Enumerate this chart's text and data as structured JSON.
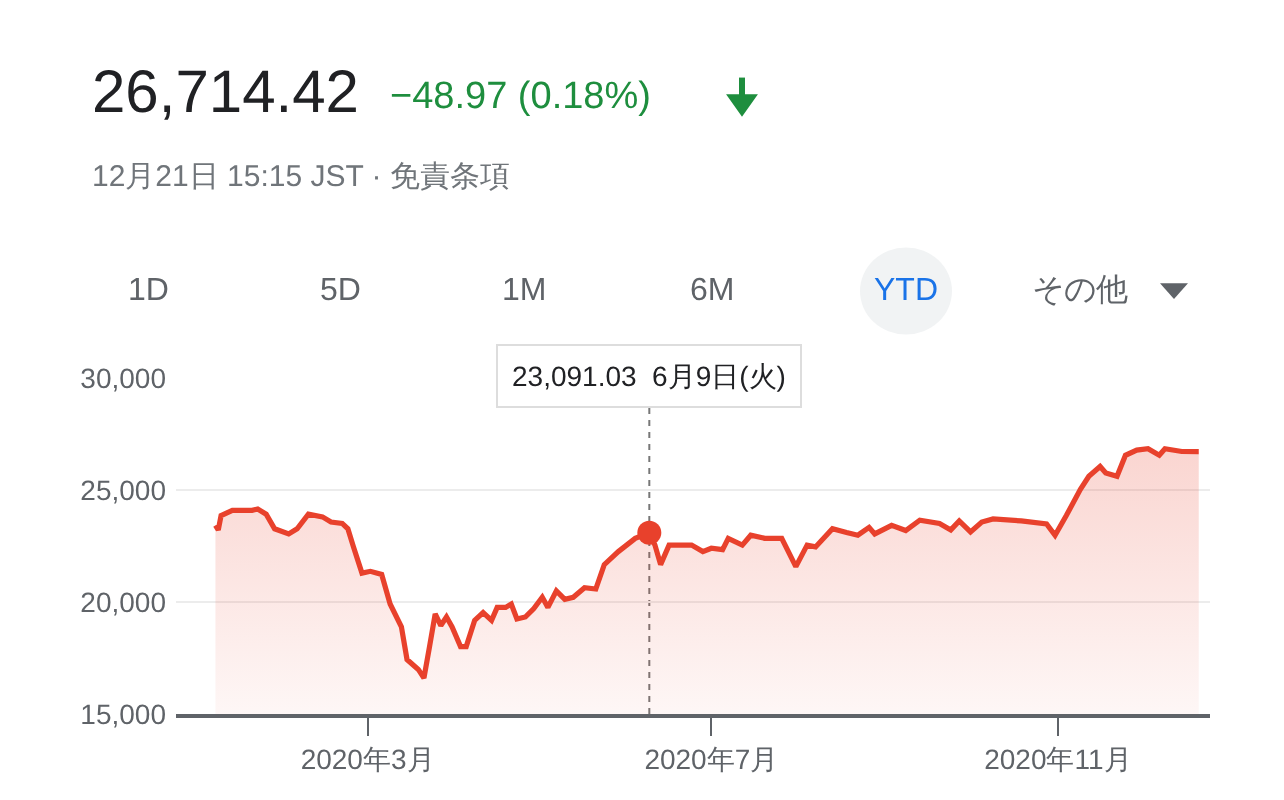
{
  "chart_data": {
    "type": "area",
    "title": "26,714.42",
    "subtitle": "12月21日 15:15 JST · 免責条項",
    "annotations": [
      "−48.97 (0.18%)",
      "1D",
      "5D",
      "1M",
      "6M",
      "YTD",
      "その他",
      "23,091.03  6月9日(火)"
    ],
    "x": [
      "2020-01-07",
      "2020-01-08",
      "2020-01-09",
      "2020-01-13",
      "2020-01-20",
      "2020-01-22",
      "2020-01-25",
      "2020-01-28",
      "2020-02-02",
      "2020-02-05",
      "2020-02-09",
      "2020-02-14",
      "2020-02-17",
      "2020-02-21",
      "2020-02-23",
      "2020-02-25",
      "2020-02-28",
      "2020-03-02",
      "2020-03-06",
      "2020-03-09",
      "2020-03-13",
      "2020-03-15",
      "2020-03-19",
      "2020-03-21",
      "2020-03-23",
      "2020-03-25",
      "2020-03-27",
      "2020-03-29",
      "2020-03-31",
      "2020-04-03",
      "2020-04-05",
      "2020-04-08",
      "2020-04-11",
      "2020-04-14",
      "2020-04-16",
      "2020-04-19",
      "2020-04-21",
      "2020-04-23",
      "2020-04-26",
      "2020-04-29",
      "2020-05-02",
      "2020-05-04",
      "2020-05-07",
      "2020-05-10",
      "2020-05-13",
      "2020-05-17",
      "2020-05-21",
      "2020-05-24",
      "2020-05-29",
      "2020-06-04",
      "2020-06-09",
      "2020-06-11",
      "2020-06-13",
      "2020-06-16",
      "2020-06-24",
      "2020-06-28",
      "2020-07-01",
      "2020-07-05",
      "2020-07-07",
      "2020-07-12",
      "2020-07-15",
      "2020-07-20",
      "2020-07-26",
      "2020-07-31",
      "2020-08-04",
      "2020-08-07",
      "2020-08-13",
      "2020-08-18",
      "2020-08-22",
      "2020-08-26",
      "2020-08-28",
      "2020-09-03",
      "2020-09-08",
      "2020-09-13",
      "2020-09-20",
      "2020-09-24",
      "2020-09-27",
      "2020-10-01",
      "2020-10-05",
      "2020-10-09",
      "2020-10-19",
      "2020-10-28",
      "2020-10-31",
      "2020-11-04",
      "2020-11-09",
      "2020-11-12",
      "2020-11-16",
      "2020-11-18",
      "2020-11-22",
      "2020-11-25",
      "2020-11-29",
      "2020-12-03",
      "2020-12-07",
      "2020-12-09",
      "2020-12-15",
      "2020-12-21"
    ],
    "series": [
      {
        "color": "#e8412c",
        "values": [
          23420,
          23220,
          23860,
          24090,
          24090,
          24150,
          23920,
          23270,
          23040,
          23270,
          23920,
          23800,
          23570,
          23510,
          23270,
          22460,
          21290,
          21370,
          21230,
          19910,
          18890,
          17430,
          16990,
          16610,
          18010,
          19470,
          18950,
          19330,
          18890,
          18010,
          18010,
          19180,
          19530,
          19180,
          19760,
          19760,
          19910,
          19240,
          19330,
          19710,
          20210,
          19760,
          20500,
          20120,
          20210,
          20640,
          20580,
          21670,
          22250,
          22840,
          23091.03,
          22540,
          21670,
          22540,
          22540,
          22250,
          22400,
          22340,
          22840,
          22540,
          22980,
          22840,
          22840,
          21580,
          22540,
          22460,
          23270,
          23100,
          22980,
          23330,
          23040,
          23420,
          23190,
          23650,
          23510,
          23220,
          23620,
          23130,
          23570,
          23710,
          23620,
          23480,
          22980,
          23860,
          25030,
          25610,
          26050,
          25760,
          25610,
          26550,
          26780,
          26840,
          26550,
          26840,
          26720,
          26710
        ]
      },
      {
        "type": "scatter",
        "marker": "circle",
        "color": "#e8412c",
        "x": [
          "2020-06-09"
        ],
        "values": [
          23091.03
        ]
      }
    ],
    "ref_lines": [
      {
        "axis": "x",
        "value": "2020-06-09",
        "line_style": "dotted",
        "color": "#777777"
      }
    ],
    "xlim": [
      "2019-12-24",
      "2020-12-25"
    ],
    "xticks": [
      {
        "value": "2020-03-01",
        "label": "2020年3月"
      },
      {
        "value": "2020-07-01",
        "label": "2020年7月"
      },
      {
        "value": "2020-11-01",
        "label": "2020年11月"
      }
    ],
    "ylim": [
      15000,
      30000
    ],
    "yticks": [
      {
        "value": 15000,
        "label": "15,000"
      },
      {
        "value": 20000,
        "label": "20,000"
      },
      {
        "value": 25000,
        "label": "25,000"
      },
      {
        "value": 30000,
        "label": "30,000"
      }
    ],
    "grid": "y"
  }
}
